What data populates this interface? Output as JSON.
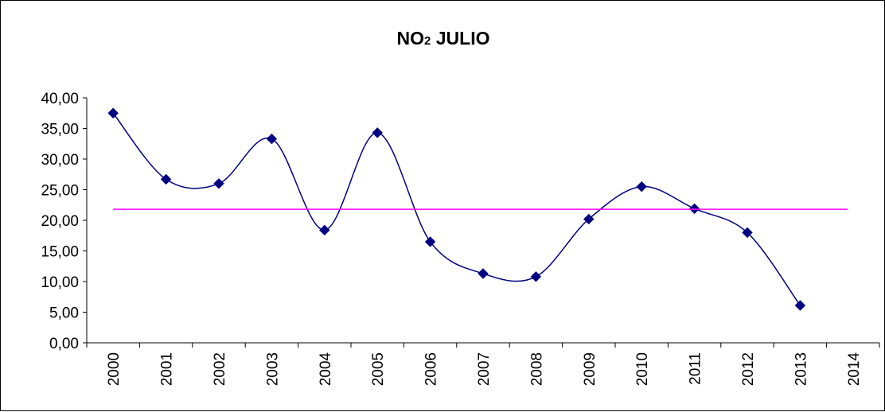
{
  "chart_data": {
    "type": "line",
    "title_main": "NO",
    "title_sub": "2",
    "title_rest": " JULIO",
    "categories": [
      "2000",
      "2001",
      "2002",
      "2003",
      "2004",
      "2005",
      "2006",
      "2007",
      "2008",
      "2009",
      "2010",
      "2011",
      "2012",
      "2013",
      "2014"
    ],
    "ylim": [
      0,
      40
    ],
    "yticks": [
      0,
      5,
      10,
      15,
      20,
      25,
      30,
      35,
      40
    ],
    "ytick_labels": [
      "0,00",
      "5,00",
      "10,00",
      "15,00",
      "20,00",
      "25,00",
      "30,00",
      "35,00",
      "40,00"
    ],
    "series": [
      {
        "color": "#000080",
        "smooth": true,
        "marker": "diamond",
        "values": [
          37.5,
          26.7,
          26.0,
          33.3,
          18.4,
          34.3,
          16.5,
          11.3,
          10.8,
          20.2,
          25.5,
          21.9,
          18.0,
          6.1,
          null
        ]
      },
      {
        "color": "#ff00ff",
        "smooth": false,
        "marker": "none",
        "values": [
          21.8,
          21.8,
          21.8,
          21.8,
          21.8,
          21.8,
          21.8,
          21.8,
          21.8,
          21.8,
          21.8,
          21.8,
          21.8,
          21.8,
          21.8
        ]
      }
    ],
    "grid": false,
    "legend": "none"
  }
}
